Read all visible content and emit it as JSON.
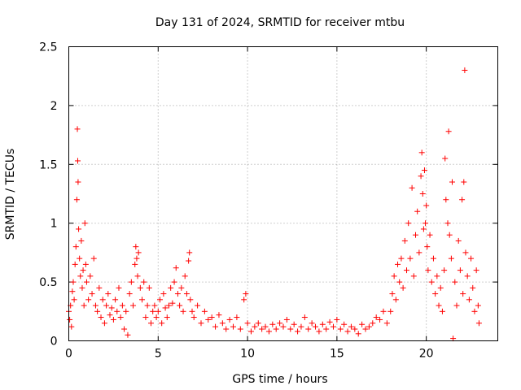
{
  "chart_data": {
    "type": "scatter",
    "title": "Day 131 of 2024, SRMTID for receiver mtbu",
    "xlabel": "GPS time / hours",
    "ylabel": "SRMTID / TECUs",
    "xlim": [
      0,
      24
    ],
    "ylim": [
      0,
      2.5
    ],
    "x_ticks": [
      0,
      5,
      10,
      15,
      20
    ],
    "y_ticks": [
      0,
      0.5,
      1,
      1.5,
      2,
      2.5
    ],
    "x_tick_labels": [
      "0",
      "5",
      "10",
      "15",
      "20"
    ],
    "y_tick_labels": [
      "0",
      "0.5",
      "1",
      "1.5",
      "2",
      "2.5"
    ],
    "grid": true,
    "marker": "plus",
    "series": [
      {
        "name": "SRMTID",
        "color": "#ff0000",
        "points": [
          [
            0.0,
            0.25
          ],
          [
            0.05,
            0.18
          ],
          [
            0.1,
            0.3
          ],
          [
            0.15,
            0.12
          ],
          [
            0.2,
            0.42
          ],
          [
            0.25,
            0.5
          ],
          [
            0.3,
            0.35
          ],
          [
            0.35,
            0.65
          ],
          [
            0.4,
            0.8
          ],
          [
            0.45,
            1.2
          ],
          [
            0.48,
            1.8
          ],
          [
            0.5,
            1.53
          ],
          [
            0.52,
            1.35
          ],
          [
            0.55,
            0.95
          ],
          [
            0.6,
            0.7
          ],
          [
            0.65,
            0.55
          ],
          [
            0.7,
            0.85
          ],
          [
            0.75,
            0.45
          ],
          [
            0.8,
            0.6
          ],
          [
            0.85,
            0.3
          ],
          [
            0.9,
            1.0
          ],
          [
            0.95,
            0.65
          ],
          [
            1.0,
            0.5
          ],
          [
            1.1,
            0.35
          ],
          [
            1.2,
            0.55
          ],
          [
            1.3,
            0.4
          ],
          [
            1.4,
            0.7
          ],
          [
            1.5,
            0.3
          ],
          [
            1.6,
            0.25
          ],
          [
            1.7,
            0.45
          ],
          [
            1.8,
            0.2
          ],
          [
            1.9,
            0.35
          ],
          [
            2.0,
            0.15
          ],
          [
            2.1,
            0.3
          ],
          [
            2.2,
            0.4
          ],
          [
            2.3,
            0.22
          ],
          [
            2.4,
            0.28
          ],
          [
            2.5,
            0.18
          ],
          [
            2.6,
            0.35
          ],
          [
            2.7,
            0.25
          ],
          [
            2.8,
            0.45
          ],
          [
            2.9,
            0.2
          ],
          [
            3.0,
            0.3
          ],
          [
            3.1,
            0.1
          ],
          [
            3.2,
            0.25
          ],
          [
            3.3,
            0.05
          ],
          [
            3.4,
            0.4
          ],
          [
            3.5,
            0.5
          ],
          [
            3.6,
            0.3
          ],
          [
            3.7,
            0.65
          ],
          [
            3.75,
            0.8
          ],
          [
            3.8,
            0.7
          ],
          [
            3.85,
            0.55
          ],
          [
            3.9,
            0.75
          ],
          [
            4.0,
            0.45
          ],
          [
            4.1,
            0.35
          ],
          [
            4.2,
            0.5
          ],
          [
            4.3,
            0.2
          ],
          [
            4.4,
            0.3
          ],
          [
            4.5,
            0.45
          ],
          [
            4.6,
            0.15
          ],
          [
            4.7,
            0.25
          ],
          [
            4.8,
            0.3
          ],
          [
            4.9,
            0.2
          ],
          [
            5.0,
            0.25
          ],
          [
            5.1,
            0.35
          ],
          [
            5.2,
            0.15
          ],
          [
            5.3,
            0.4
          ],
          [
            5.4,
            0.28
          ],
          [
            5.5,
            0.2
          ],
          [
            5.6,
            0.3
          ],
          [
            5.7,
            0.45
          ],
          [
            5.8,
            0.32
          ],
          [
            5.9,
            0.5
          ],
          [
            6.0,
            0.62
          ],
          [
            6.1,
            0.4
          ],
          [
            6.2,
            0.3
          ],
          [
            6.3,
            0.45
          ],
          [
            6.4,
            0.25
          ],
          [
            6.5,
            0.55
          ],
          [
            6.6,
            0.4
          ],
          [
            6.7,
            0.68
          ],
          [
            6.75,
            0.75
          ],
          [
            6.8,
            0.35
          ],
          [
            6.9,
            0.25
          ],
          [
            7.0,
            0.2
          ],
          [
            7.2,
            0.3
          ],
          [
            7.4,
            0.15
          ],
          [
            7.6,
            0.25
          ],
          [
            7.8,
            0.18
          ],
          [
            8.0,
            0.2
          ],
          [
            8.2,
            0.12
          ],
          [
            8.4,
            0.22
          ],
          [
            8.6,
            0.15
          ],
          [
            8.8,
            0.1
          ],
          [
            9.0,
            0.18
          ],
          [
            9.2,
            0.12
          ],
          [
            9.4,
            0.2
          ],
          [
            9.6,
            0.1
          ],
          [
            9.8,
            0.35
          ],
          [
            9.9,
            0.4
          ],
          [
            10.0,
            0.15
          ],
          [
            10.2,
            0.08
          ],
          [
            10.4,
            0.12
          ],
          [
            10.6,
            0.15
          ],
          [
            10.8,
            0.1
          ],
          [
            11.0,
            0.12
          ],
          [
            11.2,
            0.08
          ],
          [
            11.4,
            0.14
          ],
          [
            11.6,
            0.1
          ],
          [
            11.8,
            0.15
          ],
          [
            12.0,
            0.12
          ],
          [
            12.2,
            0.18
          ],
          [
            12.4,
            0.1
          ],
          [
            12.6,
            0.14
          ],
          [
            12.8,
            0.08
          ],
          [
            13.0,
            0.12
          ],
          [
            13.2,
            0.2
          ],
          [
            13.4,
            0.1
          ],
          [
            13.6,
            0.15
          ],
          [
            13.8,
            0.12
          ],
          [
            14.0,
            0.08
          ],
          [
            14.2,
            0.14
          ],
          [
            14.4,
            0.1
          ],
          [
            14.6,
            0.16
          ],
          [
            14.8,
            0.12
          ],
          [
            15.0,
            0.18
          ],
          [
            15.2,
            0.1
          ],
          [
            15.4,
            0.14
          ],
          [
            15.6,
            0.08
          ],
          [
            15.8,
            0.12
          ],
          [
            16.0,
            0.1
          ],
          [
            16.2,
            0.06
          ],
          [
            16.4,
            0.14
          ],
          [
            16.6,
            0.1
          ],
          [
            16.8,
            0.12
          ],
          [
            17.0,
            0.15
          ],
          [
            17.2,
            0.2
          ],
          [
            17.4,
            0.18
          ],
          [
            17.6,
            0.25
          ],
          [
            17.8,
            0.15
          ],
          [
            18.0,
            0.25
          ],
          [
            18.1,
            0.4
          ],
          [
            18.2,
            0.55
          ],
          [
            18.3,
            0.35
          ],
          [
            18.4,
            0.65
          ],
          [
            18.5,
            0.5
          ],
          [
            18.6,
            0.7
          ],
          [
            18.7,
            0.45
          ],
          [
            18.8,
            0.85
          ],
          [
            18.9,
            0.6
          ],
          [
            19.0,
            1.0
          ],
          [
            19.1,
            0.7
          ],
          [
            19.2,
            1.3
          ],
          [
            19.3,
            0.55
          ],
          [
            19.4,
            0.9
          ],
          [
            19.5,
            1.1
          ],
          [
            19.6,
            0.75
          ],
          [
            19.7,
            1.4
          ],
          [
            19.75,
            1.6
          ],
          [
            19.8,
            1.25
          ],
          [
            19.85,
            0.95
          ],
          [
            19.9,
            1.45
          ],
          [
            19.95,
            1.0
          ],
          [
            20.0,
            1.15
          ],
          [
            20.05,
            0.8
          ],
          [
            20.1,
            0.6
          ],
          [
            20.2,
            0.9
          ],
          [
            20.3,
            0.5
          ],
          [
            20.4,
            0.7
          ],
          [
            20.5,
            0.4
          ],
          [
            20.6,
            0.55
          ],
          [
            20.7,
            0.3
          ],
          [
            20.8,
            0.45
          ],
          [
            20.9,
            0.25
          ],
          [
            21.0,
            0.6
          ],
          [
            21.05,
            1.55
          ],
          [
            21.1,
            1.2
          ],
          [
            21.2,
            1.0
          ],
          [
            21.25,
            1.78
          ],
          [
            21.3,
            0.9
          ],
          [
            21.4,
            0.7
          ],
          [
            21.45,
            1.35
          ],
          [
            21.5,
            0.02
          ],
          [
            21.6,
            0.5
          ],
          [
            21.7,
            0.3
          ],
          [
            21.8,
            0.85
          ],
          [
            21.9,
            0.6
          ],
          [
            22.0,
            1.2
          ],
          [
            22.05,
            0.4
          ],
          [
            22.1,
            1.35
          ],
          [
            22.15,
            2.3
          ],
          [
            22.2,
            0.75
          ],
          [
            22.3,
            0.55
          ],
          [
            22.4,
            0.35
          ],
          [
            22.5,
            0.7
          ],
          [
            22.6,
            0.45
          ],
          [
            22.7,
            0.25
          ],
          [
            22.8,
            0.6
          ],
          [
            22.9,
            0.3
          ],
          [
            22.95,
            0.15
          ]
        ]
      }
    ]
  }
}
